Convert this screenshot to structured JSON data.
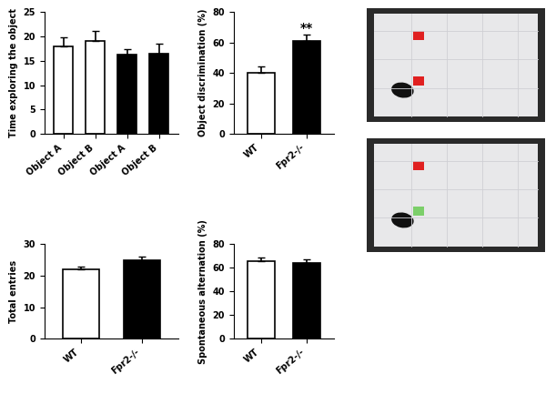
{
  "chart_data": [
    {
      "type": "bar",
      "y_label": "Time exploring the object",
      "categories": [
        "Object A",
        "Object B",
        "Object A",
        "Object B"
      ],
      "values": [
        18,
        19,
        16.2,
        16.5
      ],
      "errors": [
        1.8,
        2.0,
        1.2,
        2.0
      ],
      "colors": [
        "#ffffff",
        "#ffffff",
        "#000000",
        "#000000"
      ],
      "ylim": [
        0,
        25
      ],
      "yticks": [
        0,
        5,
        10,
        15,
        20,
        25
      ]
    },
    {
      "type": "bar",
      "y_label": "Object discrimination (%)",
      "categories": [
        "WT",
        "Fpr2-/-"
      ],
      "values": [
        40,
        61
      ],
      "errors": [
        4,
        4
      ],
      "colors": [
        "#ffffff",
        "#000000"
      ],
      "ylim": [
        0,
        80
      ],
      "yticks": [
        0,
        20,
        40,
        60,
        80
      ],
      "annotations": [
        {
          "text": "**",
          "category": "Fpr2-/-"
        }
      ]
    },
    {
      "type": "bar",
      "y_label": "Total entries",
      "categories": [
        "WT",
        "Fpr2-/-"
      ],
      "values": [
        22,
        25
      ],
      "errors": [
        1,
        1
      ],
      "colors": [
        "#ffffff",
        "#000000"
      ],
      "ylim": [
        0,
        30
      ],
      "yticks": [
        0,
        10,
        20,
        30
      ]
    },
    {
      "type": "bar",
      "y_label": "Spontaneous alternation (%)",
      "categories": [
        "WT",
        "Fpr2-/-"
      ],
      "values": [
        66,
        64
      ],
      "errors": [
        3,
        3
      ],
      "colors": [
        "#ffffff",
        "#000000"
      ],
      "ylim": [
        0,
        80
      ],
      "yticks": [
        0,
        20,
        40,
        60,
        80
      ]
    }
  ]
}
